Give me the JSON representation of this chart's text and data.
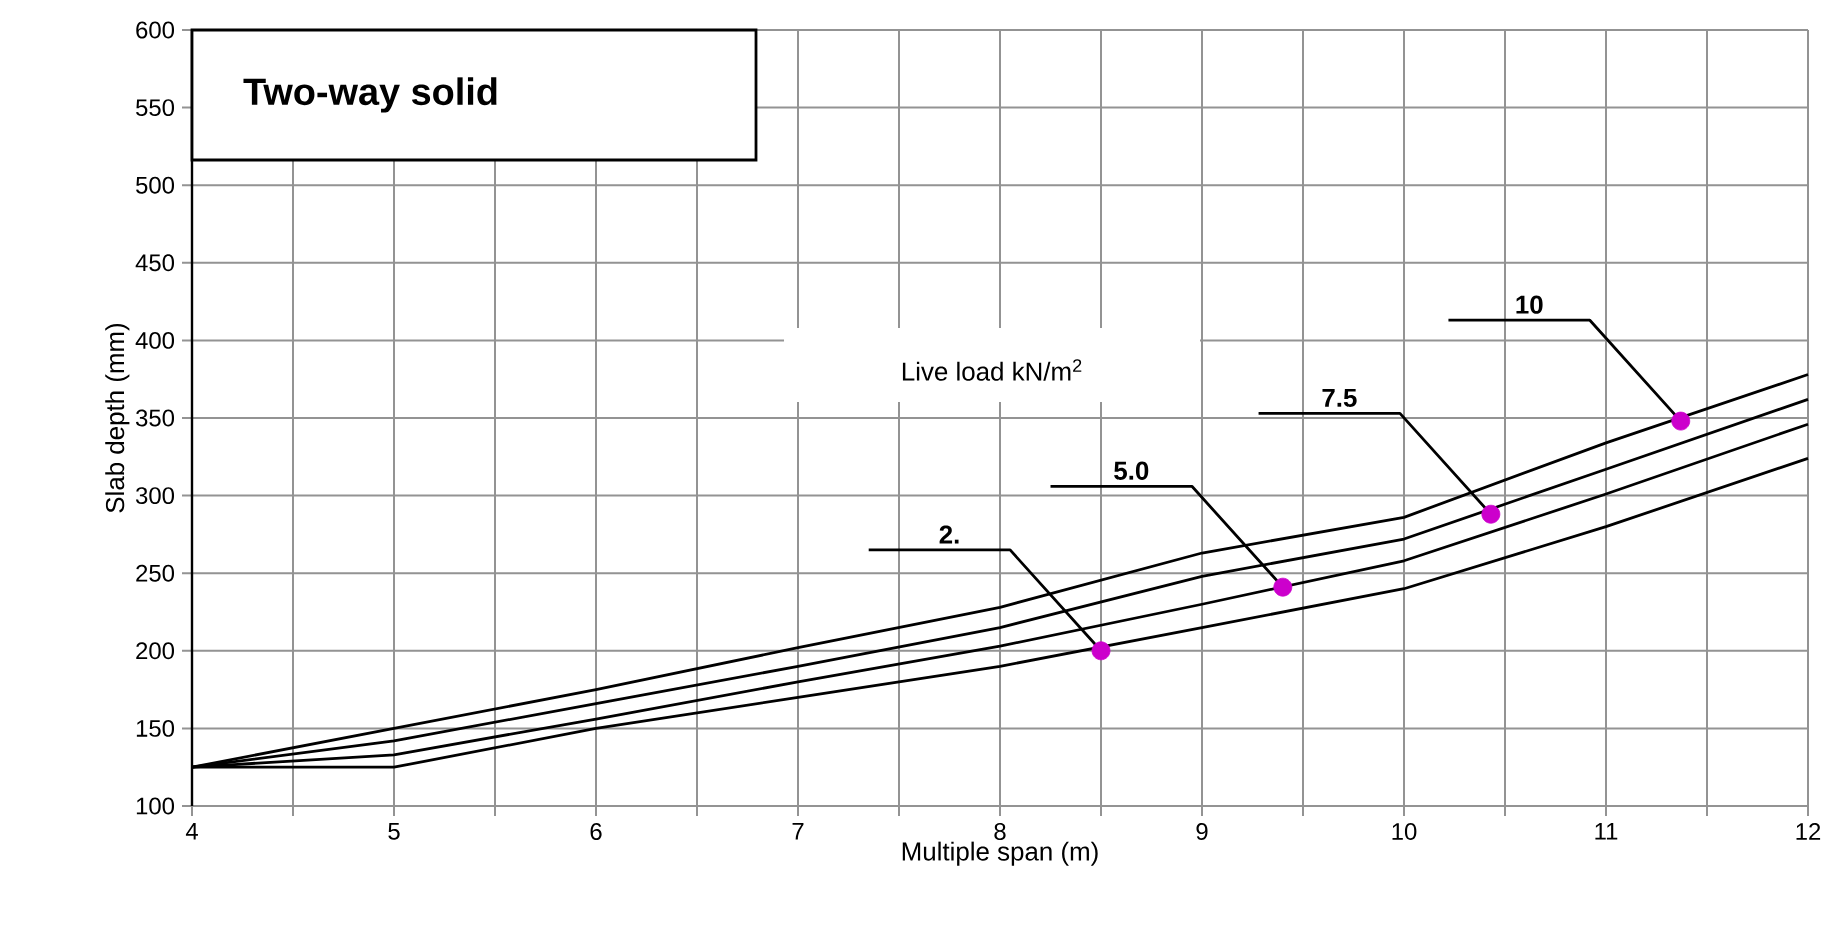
{
  "chart_data": {
    "type": "line",
    "title": "Two-way solid",
    "xlabel": "Multiple span (m)",
    "ylabel": "Slab depth (mm)",
    "x": [
      4,
      5,
      6,
      7,
      8,
      9,
      10,
      11,
      12
    ],
    "series": [
      {
        "color": "#000000",
        "values": [
          125,
          125,
          150,
          170,
          190,
          215,
          240,
          280,
          324
        ]
      },
      {
        "color": "#000000",
        "values": [
          125,
          133,
          156,
          180,
          203,
          230,
          258,
          301,
          346
        ]
      },
      {
        "color": "#000000",
        "values": [
          125,
          142,
          166,
          190,
          215,
          248,
          272,
          317,
          362
        ]
      },
      {
        "color": "#000000",
        "values": [
          125,
          150,
          175,
          202,
          228,
          263,
          286,
          334,
          378
        ]
      },
      {
        "type": "scatter",
        "color": "#cc00cc",
        "x": [
          8.5,
          9.4,
          10.43,
          11.37
        ],
        "values": [
          200,
          241,
          288,
          348
        ]
      }
    ],
    "xlim": [
      4,
      12
    ],
    "ylim": [
      100,
      600
    ],
    "xticks": [
      4,
      {
        "value": 4.5,
        "label": null
      },
      5,
      {
        "value": 5.5,
        "label": null
      },
      6,
      {
        "value": 6.5,
        "label": null
      },
      7,
      {
        "value": 7.5,
        "label": null
      },
      8,
      {
        "value": 8.5,
        "label": null
      },
      9,
      {
        "value": 9.5,
        "label": null
      },
      10,
      {
        "value": 10.5,
        "label": null
      },
      11,
      {
        "value": 11.5,
        "label": null
      },
      12
    ],
    "yticks": [
      100,
      150,
      200,
      250,
      300,
      350,
      400,
      450,
      500,
      550,
      600
    ],
    "grid": true,
    "line_style": "solid",
    "annotations": [
      {
        "text": "2.",
        "x": 8.5,
        "y": 200
      },
      {
        "text": "5.0",
        "x": 9.4,
        "y": 241
      },
      {
        "text": "7.5",
        "x": 10.43,
        "y": 288
      },
      {
        "text": "10",
        "x": 11.37,
        "y": 348
      },
      "Live load kN/m$^{2}$"
    ]
  }
}
